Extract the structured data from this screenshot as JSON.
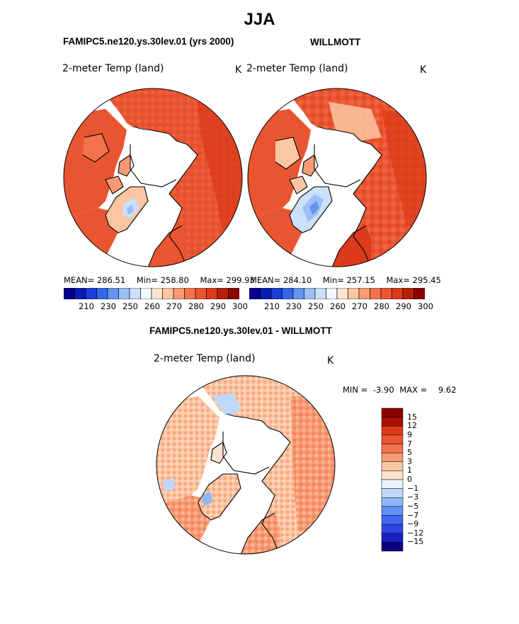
{
  "title": "JJA",
  "colors": {
    "ocean": "#ffffff",
    "coast": "#000000",
    "abs_scale": [
      "#08008c",
      "#0a1cb4",
      "#1c3ed6",
      "#3466e8",
      "#6494f0",
      "#9cc0f4",
      "#cce0fa",
      "#f0f8ff",
      "#fde3cf",
      "#fcc6a3",
      "#f89a74",
      "#f2734d",
      "#ea5531",
      "#dc3a1a",
      "#b82008",
      "#8c0600"
    ],
    "diff_scale": [
      "#07007d",
      "#1a1fc2",
      "#2c45e4",
      "#4068f2",
      "#6290f5",
      "#8eb6f8",
      "#c0d8fb",
      "#eaf4ff",
      "#fde3cf",
      "#fcc6a3",
      "#f89a74",
      "#f2734d",
      "#ea5531",
      "#dc3a1a",
      "#a80f00",
      "#8a0000"
    ]
  },
  "panels": [
    {
      "header": "FAMIPC5.ne120.ys.30lev.01 (yrs 2000)",
      "var_label": "2-meter Temp (land)",
      "units": "K",
      "mean_label": "MEAN=",
      "mean": "286.51",
      "min_label": "Min=",
      "min": "258.80",
      "max_label": "Max=",
      "max": "299.93",
      "tick_labels": [
        "210",
        "230",
        "250",
        "260",
        "270",
        "280",
        "290",
        "300"
      ]
    },
    {
      "header": "WILLMOTT",
      "var_label": "2-meter Temp (land)",
      "units": "K",
      "mean_label": "MEAN=",
      "mean": "284.10",
      "min_label": "Min=",
      "min": "257.15",
      "max_label": "Max=",
      "max": "295.45",
      "tick_labels": [
        "210",
        "230",
        "250",
        "260",
        "270",
        "280",
        "290",
        "300"
      ]
    }
  ],
  "diff": {
    "header": "FAMIPC5.ne120.ys.30lev.01 - WILLMOTT",
    "var_label": "2-meter Temp (land)",
    "units": "K",
    "min_label": "MIN =",
    "min": "-3.90",
    "max_label": "MAX =",
    "max": "9.62",
    "levels": [
      "15",
      "12",
      "9",
      "7",
      "5",
      "3",
      "1",
      "0",
      "−1",
      "−3",
      "−5",
      "−7",
      "−9",
      "−12",
      "−15"
    ]
  }
}
